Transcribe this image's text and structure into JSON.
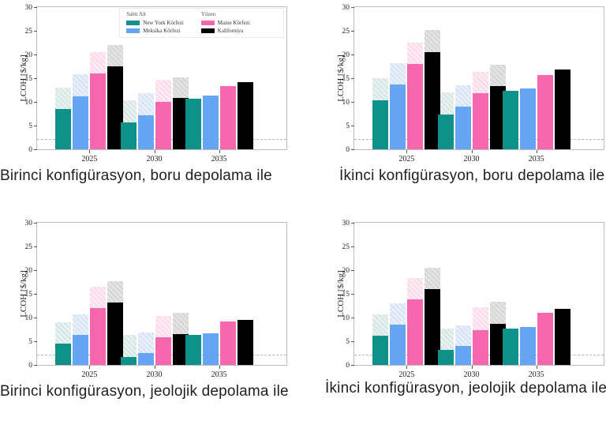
{
  "page": {
    "background": "#ffffff"
  },
  "colors": {
    "teal": "#0e9188",
    "blue": "#66a5f3",
    "pink": "#f767ad",
    "black": "#000000",
    "spine": "#bdbdbd",
    "reference_dash": "#b5b5b5"
  },
  "legend": {
    "groups": [
      {
        "header": "Sabit Alt",
        "items": [
          {
            "label": "New York Körfezi",
            "color": "#0e9188"
          },
          {
            "label": "Meksika Körfezi",
            "color": "#66a5f3"
          }
        ]
      },
      {
        "header": "Yüzen",
        "items": [
          {
            "label": "Maine Körfezi",
            "color": "#f767ad"
          },
          {
            "label": "Kaliforniya",
            "color": "#000000"
          }
        ]
      }
    ]
  },
  "figures": [
    {
      "caption": "Birinci konfigürasyon, boru depolama ile"
    },
    {
      "caption": "İkinci konfigürasyon, boru depolama ile"
    },
    {
      "caption": "Birinci konfigürasyon, jeolojik depolama ile"
    },
    {
      "caption": "İkinci konfigürasyon, jeolojik depolama ile"
    }
  ],
  "chart_data": [
    {
      "type": "bar",
      "title": "Birinci konfigürasyon, boru depolama ile",
      "ylabel": "LCOH [$/kg]",
      "ylim": [
        0,
        30
      ],
      "yticks": [
        0,
        5,
        10,
        15,
        20,
        25,
        30
      ],
      "categories": [
        "2025",
        "2030",
        "2035"
      ],
      "reference_line": 2,
      "legend_visible": true,
      "series": [
        {
          "name": "New York Körfezi",
          "group": "Sabit Alt",
          "color": "#0e9188",
          "light_color": "#e7f1ef",
          "hatch_color": "#cfe3df",
          "solid": [
            8.5,
            5.7,
            10.7
          ],
          "total": [
            13.0,
            10.3,
            10.7
          ]
        },
        {
          "name": "Meksika Körfezi",
          "group": "Sabit Alt",
          "color": "#66a5f3",
          "light_color": "#e9effa",
          "hatch_color": "#d3e0f4",
          "solid": [
            11.2,
            7.2,
            11.3
          ],
          "total": [
            15.8,
            11.8,
            11.3
          ]
        },
        {
          "name": "Maine Körfezi",
          "group": "Yüzen",
          "color": "#f767ad",
          "light_color": "#fdeaf3",
          "hatch_color": "#f8d6e7",
          "solid": [
            16.0,
            10.0,
            13.3
          ],
          "total": [
            20.5,
            14.7,
            13.3
          ]
        },
        {
          "name": "Kaliforniya",
          "group": "Yüzen",
          "color": "#000000",
          "light_color": "#e3e3e3",
          "hatch_color": "#d2d2d2",
          "solid": [
            17.5,
            10.8,
            14.2
          ],
          "total": [
            22.0,
            15.2,
            14.2
          ]
        }
      ]
    },
    {
      "type": "bar",
      "title": "İkinci konfigürasyon, boru depolama ile",
      "ylabel": "LCOH [$/kg]",
      "ylim": [
        0,
        30
      ],
      "yticks": [
        0,
        5,
        10,
        15,
        20,
        25,
        30
      ],
      "categories": [
        "2025",
        "2030",
        "2035"
      ],
      "reference_line": 2,
      "legend_visible": false,
      "series": [
        {
          "name": "New York Körfezi",
          "group": "Sabit Alt",
          "color": "#0e9188",
          "light_color": "#e7f1ef",
          "hatch_color": "#cfe3df",
          "solid": [
            10.4,
            7.4,
            12.4
          ],
          "total": [
            15.0,
            12.0,
            12.4
          ]
        },
        {
          "name": "Meksika Körfezi",
          "group": "Sabit Alt",
          "color": "#66a5f3",
          "light_color": "#e9effa",
          "hatch_color": "#d3e0f4",
          "solid": [
            13.7,
            9.0,
            12.9
          ],
          "total": [
            18.2,
            13.5,
            12.9
          ]
        },
        {
          "name": "Maine Körfezi",
          "group": "Yüzen",
          "color": "#f767ad",
          "light_color": "#fdeaf3",
          "hatch_color": "#f8d6e7",
          "solid": [
            18.0,
            11.8,
            15.6
          ],
          "total": [
            22.5,
            16.4,
            15.6
          ]
        },
        {
          "name": "Kaliforniya",
          "group": "Yüzen",
          "color": "#000000",
          "light_color": "#e3e3e3",
          "hatch_color": "#d2d2d2",
          "solid": [
            20.5,
            13.3,
            16.8
          ],
          "total": [
            25.2,
            17.9,
            16.8
          ]
        }
      ]
    },
    {
      "type": "bar",
      "title": "Birinci konfigürasyon, jeolojik depolama ile",
      "ylabel": "LCOH [$/kg]",
      "ylim": [
        0,
        30
      ],
      "yticks": [
        0,
        5,
        10,
        15,
        20,
        25,
        30
      ],
      "categories": [
        "2025",
        "2030",
        "2035"
      ],
      "reference_line": 2,
      "legend_visible": false,
      "series": [
        {
          "name": "New York Körfezi",
          "group": "Sabit Alt",
          "color": "#0e9188",
          "light_color": "#e7f1ef",
          "hatch_color": "#cfe3df",
          "solid": [
            4.5,
            1.7,
            6.3
          ],
          "total": [
            9.0,
            6.3,
            6.3
          ]
        },
        {
          "name": "Meksika Körfezi",
          "group": "Sabit Alt",
          "color": "#66a5f3",
          "light_color": "#e9effa",
          "hatch_color": "#d3e0f4",
          "solid": [
            6.3,
            2.5,
            6.6
          ],
          "total": [
            10.7,
            6.8,
            6.6
          ]
        },
        {
          "name": "Maine Körfezi",
          "group": "Yüzen",
          "color": "#f767ad",
          "light_color": "#fdeaf3",
          "hatch_color": "#f8d6e7",
          "solid": [
            12.0,
            5.9,
            9.2
          ],
          "total": [
            16.5,
            10.4,
            9.2
          ]
        },
        {
          "name": "Kaliforniya",
          "group": "Yüzen",
          "color": "#000000",
          "light_color": "#e3e3e3",
          "hatch_color": "#d2d2d2",
          "solid": [
            13.1,
            6.5,
            9.5
          ],
          "total": [
            17.7,
            11.0,
            9.5
          ]
        }
      ]
    },
    {
      "type": "bar",
      "title": "İkinci konfigürasyon, jeolojik depolama ile",
      "ylabel": "LCOH [$/kg]",
      "ylim": [
        0,
        30
      ],
      "yticks": [
        0,
        5,
        10,
        15,
        20,
        25,
        30
      ],
      "categories": [
        "2025",
        "2030",
        "2035"
      ],
      "reference_line": 2,
      "legend_visible": false,
      "series": [
        {
          "name": "New York Körfezi",
          "group": "Sabit Alt",
          "color": "#0e9188",
          "light_color": "#e7f1ef",
          "hatch_color": "#cfe3df",
          "solid": [
            6.2,
            3.1,
            7.7
          ],
          "total": [
            10.7,
            7.7,
            7.7
          ]
        },
        {
          "name": "Meksika Körfezi",
          "group": "Sabit Alt",
          "color": "#66a5f3",
          "light_color": "#e9effa",
          "hatch_color": "#d3e0f4",
          "solid": [
            8.5,
            4.0,
            8.0
          ],
          "total": [
            13.0,
            8.4,
            8.0
          ]
        },
        {
          "name": "Maine Körfezi",
          "group": "Yüzen",
          "color": "#f767ad",
          "light_color": "#fdeaf3",
          "hatch_color": "#f8d6e7",
          "solid": [
            13.9,
            7.3,
            11.0
          ],
          "total": [
            18.4,
            12.1,
            11.0
          ]
        },
        {
          "name": "Kaliforniya",
          "group": "Yüzen",
          "color": "#000000",
          "light_color": "#e3e3e3",
          "hatch_color": "#d2d2d2",
          "solid": [
            16.0,
            8.7,
            11.9
          ],
          "total": [
            20.5,
            13.3,
            11.9
          ]
        }
      ]
    }
  ]
}
